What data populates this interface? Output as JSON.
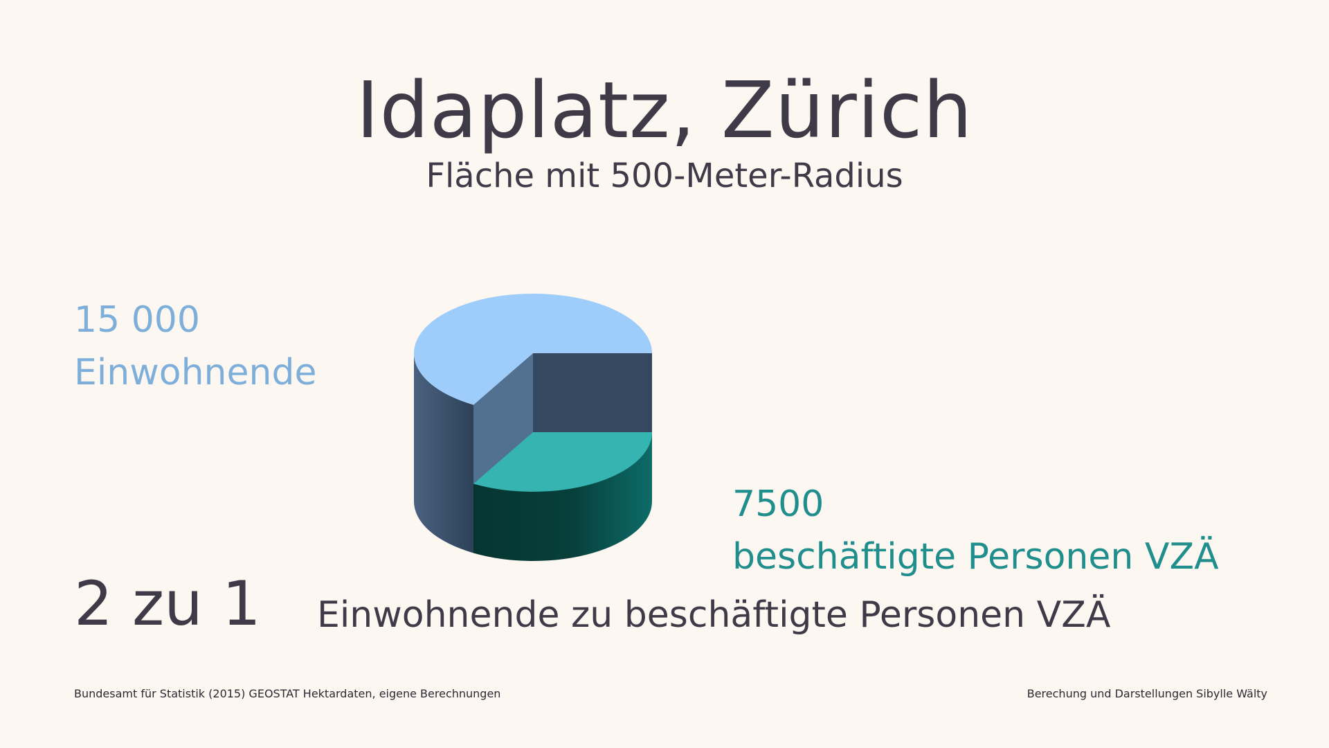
{
  "header": {
    "title": "Idaplatz, Zürich",
    "subtitle": "Fläche mit 500-Meter-Radius"
  },
  "labels": {
    "residents_value": "15 000",
    "residents_label": "Einwohnende",
    "employees_value": "7500",
    "employees_label": "beschäftigte Personen VZÄ",
    "ratio_value": "2 zu 1",
    "ratio_label": "Einwohnende zu beschäftigte Personen VZÄ"
  },
  "footer": {
    "source": "Bundesamt für Statistik (2015) GEOSTAT Hektardaten, eigene Berechnungen",
    "credit": "Berechung und Darstellungen Sibylle Wälty"
  },
  "colors": {
    "residents": "#9ecdfc",
    "employees": "#36b4b2",
    "text": "#3f3a48",
    "background": "#fcf7f0"
  },
  "chart_data": {
    "type": "pie",
    "style": "3d-cylinder-exploded",
    "categories": [
      "Einwohnende",
      "beschäftigte Personen VZÄ"
    ],
    "values": [
      15000,
      7500
    ],
    "colors": [
      "#9ecdfc",
      "#36b4b2"
    ]
  }
}
